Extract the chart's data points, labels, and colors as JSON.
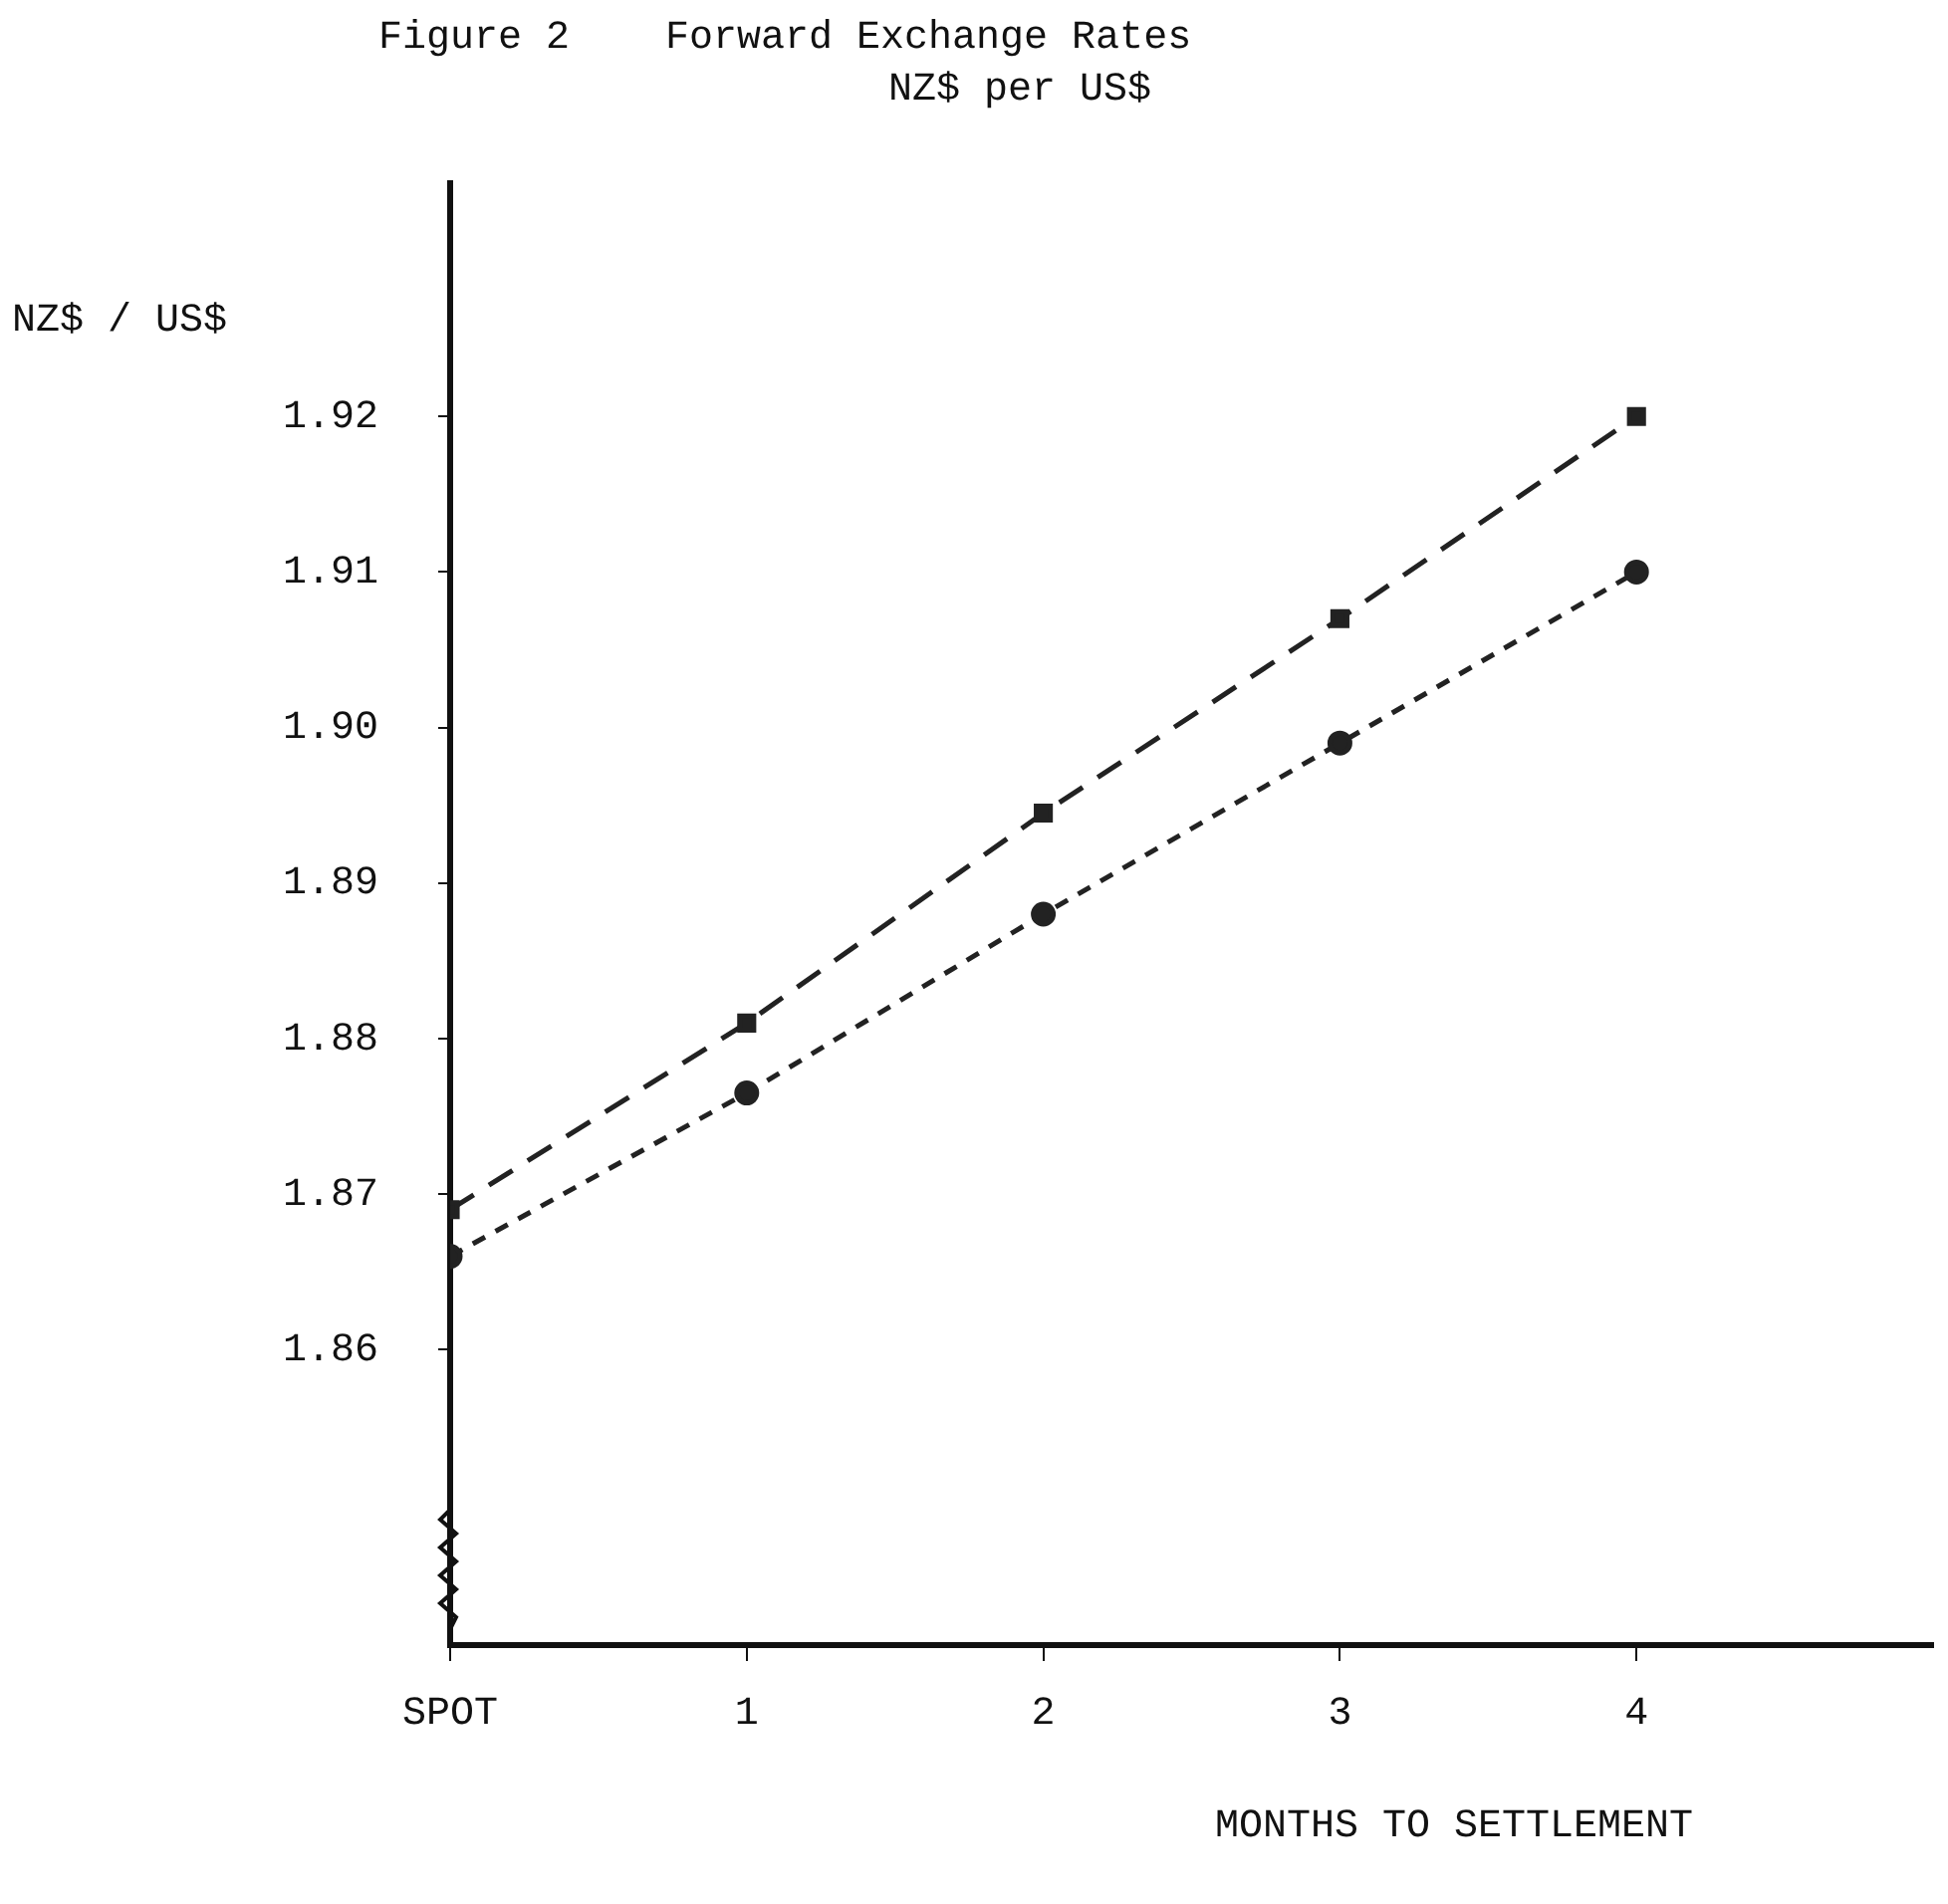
{
  "chart_data": {
    "type": "line",
    "title": "Figure 2    Forward Exchange Rates",
    "subtitle": "NZ$ per US$",
    "xlabel": "MONTHS TO SETTLEMENT",
    "ylabel": "NZ$ / US$",
    "x": [
      0,
      1,
      2,
      3,
      4
    ],
    "series": [
      {
        "color": "#222222",
        "marker": "square",
        "line_style": "dashed",
        "values": [
          1.869,
          1.881,
          1.8945,
          1.907,
          1.92
        ]
      },
      {
        "color": "#222222",
        "marker": "circle",
        "line_style": "dotted",
        "values": [
          1.866,
          1.8765,
          1.888,
          1.899,
          1.91
        ]
      }
    ],
    "xlim": [
      0,
      5
    ],
    "xticks": [
      {
        "value": 0,
        "label": "SPOT"
      },
      1,
      2,
      3,
      4
    ],
    "ylim": [
      1.841,
      1.935
    ],
    "yticks": [
      1.86,
      1.87,
      1.88,
      1.89,
      {
        "value": 1.9,
        "label": "1.90"
      },
      1.91,
      1.92
    ],
    "grid": false,
    "legend": false
  }
}
